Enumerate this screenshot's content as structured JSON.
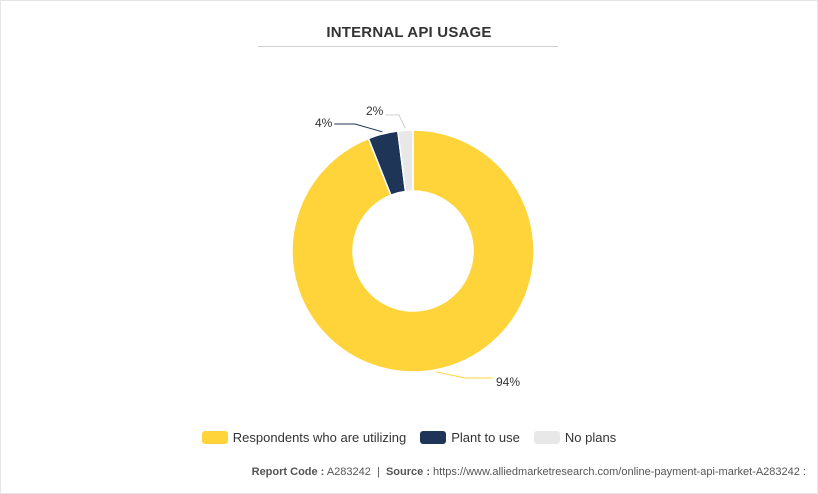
{
  "chart_data": {
    "type": "pie",
    "title": "INTERNAL API USAGE",
    "categories": [
      "Respondents who are utilizing",
      "Plant to use",
      "No plans"
    ],
    "values": [
      94,
      4,
      2
    ],
    "labels": [
      "94%",
      "4%",
      "2%"
    ],
    "colors": [
      "#FFD43B",
      "#1F3557",
      "#E8E8E8"
    ],
    "donut": true,
    "legend": "bottom-center"
  },
  "footer": {
    "report_label": "Report Code :",
    "report_code": "A283242",
    "separator": "|",
    "source_label": "Source :",
    "source_url": "https://www.alliedmarketresearch.com/online-payment-api-market-A283242 :"
  }
}
